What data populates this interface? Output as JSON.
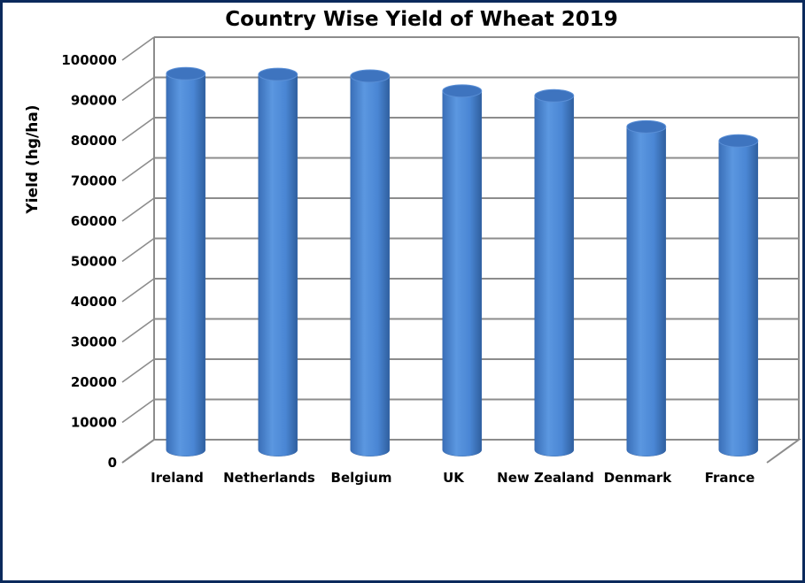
{
  "chart_data": {
    "type": "bar",
    "title": "Country Wise Yield of Wheat 2019",
    "xlabel": "",
    "ylabel": "Yield (hg/ha)",
    "categories": [
      "Ireland",
      "Netherlands",
      "Belgium",
      "UK",
      "New Zealand",
      "Denmark",
      "France"
    ],
    "values": [
      93500,
      93300,
      92900,
      89200,
      88000,
      80300,
      76800
    ],
    "ylim": [
      0,
      100000
    ],
    "yticks": [
      "0",
      "10000",
      "20000",
      "30000",
      "40000",
      "50000",
      "60000",
      "70000",
      "80000",
      "90000",
      "100000"
    ],
    "grid": true,
    "legend": "none",
    "bar_color": "#4a86d4",
    "bar_top_color": "#3e74bf",
    "frame_color": "#0b2a5c"
  }
}
